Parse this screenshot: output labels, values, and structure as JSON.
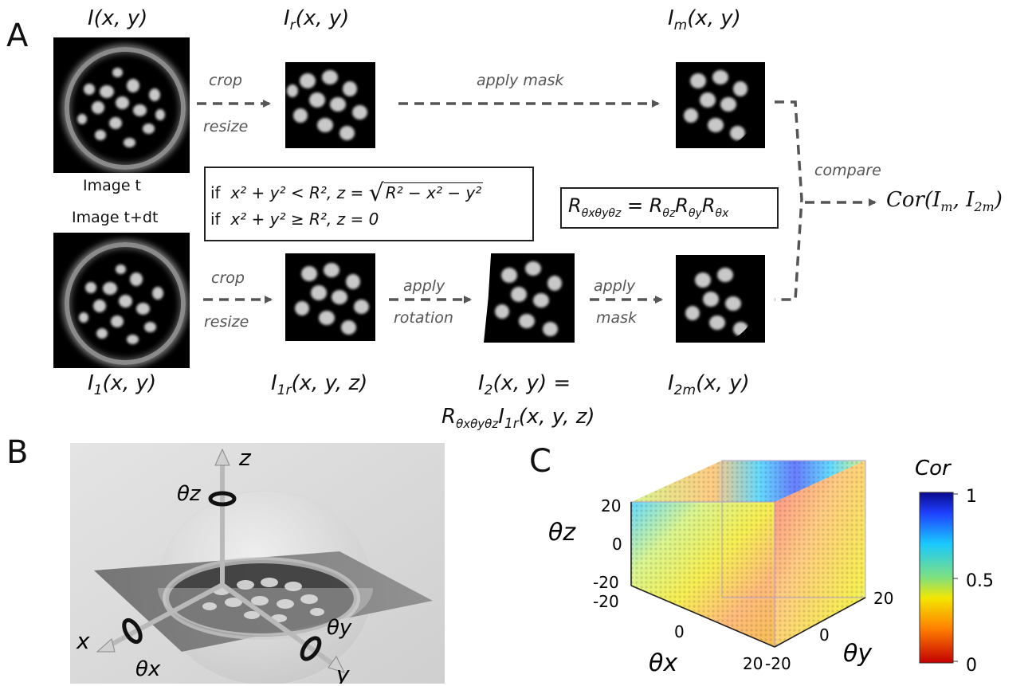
{
  "panels": {
    "a": "A",
    "b": "B",
    "c": "C"
  },
  "labels": {
    "I": "I(x, y)",
    "Ir": "I",
    "Ir_sub": "r",
    "Ir_args": "(x, y)",
    "Im": "I",
    "Im_sub": "m",
    "Im_args": "(x, y)",
    "I1": "I",
    "I1_sub": "1",
    "I1_args": "(x, y)",
    "I1r": "I",
    "I1r_sub": "1r",
    "I1r_args": "(x, y, z)",
    "I2_top": "I",
    "I2_top_sub": "2",
    "I2_top_args": "(x, y) =",
    "I2_bottom_R": "R",
    "I2_bottom_R_sub": "θxθyθz",
    "I2_bottom_I": "I",
    "I2_bottom_I_sub": "1r",
    "I2_bottom_args": "(x, y, z)",
    "I2m": "I",
    "I2m_sub": "2m",
    "I2m_args": "(x, y)"
  },
  "captions": {
    "image_t": "Image t",
    "image_tdt": "Image t+dt"
  },
  "steps": {
    "crop1": "crop",
    "resize1": "resize",
    "apply_mask": "apply mask",
    "crop2": "crop",
    "resize2": "resize",
    "apply1": "apply",
    "rotation": "rotation",
    "apply2": "apply",
    "mask": "mask",
    "compare": "compare",
    "result": "Cor(I",
    "result_m": "m",
    "result_mid": ", I",
    "result_2m": "2m",
    "result_end": ")"
  },
  "conditions": {
    "line1_if": "if",
    "line1_expr": "x² + y² < R²,  z = ",
    "line1_sqrt": "R² − x² − y²",
    "line2_if": "if",
    "line2_expr": "x² + y² ≥ R²,  z = 0"
  },
  "rotation_eq": {
    "lhs": "R",
    "lhs_sub": "θxθyθz",
    "eq": " = ",
    "r1": "R",
    "r1_sub": "θz",
    "r2": "R",
    "r2_sub": "θy",
    "r3": "R",
    "r3_sub": "θx"
  },
  "panel_b": {
    "z": "z",
    "theta_z": "θz",
    "x": "x",
    "theta_x": "θx",
    "y": "y",
    "theta_y": "θy"
  },
  "chart_data": {
    "type": "scatter",
    "xlabel": "θx",
    "ylabel": "θy",
    "zlabel": "θz",
    "x_ticks": [
      "-20",
      "0",
      "20"
    ],
    "y_ticks": [
      "-20",
      "0",
      "20"
    ],
    "z_ticks": [
      "-20",
      "0",
      "20"
    ],
    "xlim": [
      -20,
      20
    ],
    "ylim": [
      -20,
      20
    ],
    "zlim": [
      -20,
      20
    ],
    "colorbar": {
      "label": "Cor",
      "ticks": [
        "1",
        "0.5",
        "0"
      ],
      "range": [
        0,
        1
      ]
    },
    "colors": {
      "high": "#0a0a8c",
      "mid": "#f2e600",
      "low": "#d40000"
    }
  }
}
